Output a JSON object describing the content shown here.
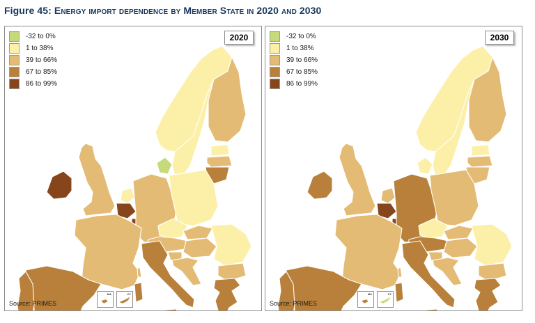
{
  "title": {
    "prefix": "Figure 45:",
    "text": "Energy import dependence by Member State in 2020 and 2030"
  },
  "legend": [
    {
      "label": "-32 to 0%",
      "color": "#c6da7c"
    },
    {
      "label": "1 to 38%",
      "color": "#fcf0a8"
    },
    {
      "label": "39 to 66%",
      "color": "#e3bb74"
    },
    {
      "label": "67 to 85%",
      "color": "#b8803a"
    },
    {
      "label": "86 to 99%",
      "color": "#86451b"
    }
  ],
  "source": "Source: PRIMES",
  "inset_labels": [
    "MA",
    "CY"
  ],
  "panels": [
    {
      "year": "2020",
      "classes": {
        "PT": 3,
        "ES": 3,
        "FR": 2,
        "IE": 4,
        "UK": 2,
        "BE": 4,
        "NL": 1,
        "LU": 4,
        "DE": 2,
        "DK": 0,
        "NO": 1,
        "SE": 1,
        "FI": 2,
        "EE": 1,
        "LV": 2,
        "LT": 3,
        "PL": 1,
        "CZ": 1,
        "SK": 2,
        "AT": 2,
        "HU": 2,
        "SI": 2,
        "HR": 2,
        "RO": 1,
        "BG": 2,
        "IT": 3,
        "GR": 3,
        "MT": 3,
        "CY": 3
      }
    },
    {
      "year": "2030",
      "classes": {
        "PT": 3,
        "ES": 3,
        "FR": 2,
        "IE": 3,
        "UK": 2,
        "BE": 4,
        "NL": 2,
        "LU": 4,
        "DE": 3,
        "DK": 1,
        "NO": 1,
        "SE": 1,
        "FI": 2,
        "EE": 1,
        "LV": 2,
        "LT": 2,
        "PL": 2,
        "CZ": 1,
        "SK": 2,
        "AT": 3,
        "HU": 2,
        "SI": 2,
        "HR": 2,
        "RO": 1,
        "BG": 2,
        "IT": 3,
        "GR": 3,
        "MT": 3,
        "CY": 0
      }
    }
  ]
}
